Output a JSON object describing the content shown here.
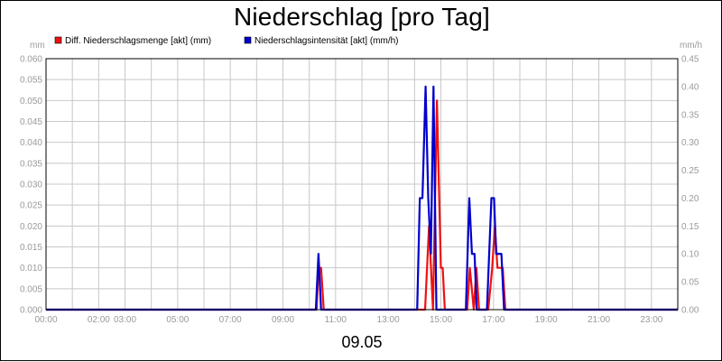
{
  "chart_data": {
    "type": "line",
    "title": "Niederschlag [pro Tag]",
    "date_label": "09.05",
    "y_left_unit": "mm",
    "y_right_unit": "mm/h",
    "y_left_range": [
      0,
      0.06
    ],
    "y_right_range": [
      0,
      0.45
    ],
    "x_range_hours": [
      0,
      24
    ],
    "grid": true,
    "legend_placement": "top-left",
    "left_ticks": [
      "0.000",
      "0.005",
      "0.010",
      "0.015",
      "0.020",
      "0.025",
      "0.030",
      "0.035",
      "0.040",
      "0.045",
      "0.050",
      "0.055",
      "0.060"
    ],
    "right_ticks": [
      "0.00",
      "0.05",
      "0.10",
      "0.15",
      "0.20",
      "0.25",
      "0.30",
      "0.35",
      "0.40",
      "0.45"
    ],
    "x_ticks": [
      {
        "h": 0,
        "label": "00:00"
      },
      {
        "h": 2,
        "label": "02:00"
      },
      {
        "h": 3,
        "label": "03:00"
      },
      {
        "h": 5,
        "label": "05:00"
      },
      {
        "h": 7,
        "label": "07:00"
      },
      {
        "h": 9,
        "label": "09:00"
      },
      {
        "h": 11,
        "label": "11:00"
      },
      {
        "h": 13,
        "label": "13:00"
      },
      {
        "h": 15,
        "label": "15:00"
      },
      {
        "h": 17,
        "label": "17:00"
      },
      {
        "h": 19,
        "label": "19:00"
      },
      {
        "h": 21,
        "label": "21:00"
      },
      {
        "h": 23,
        "label": "23:00"
      }
    ],
    "series": [
      {
        "name": "Diff. Niederschlagsmenge [akt] (mm)",
        "color": "#ee1111",
        "axis": "left",
        "points": [
          [
            0,
            0
          ],
          [
            10.28,
            0
          ],
          [
            10.35,
            0.01
          ],
          [
            10.45,
            0.01
          ],
          [
            10.55,
            0
          ],
          [
            14.4,
            0
          ],
          [
            14.55,
            0.02
          ],
          [
            14.7,
            0
          ],
          [
            14.85,
            0.05
          ],
          [
            15.0,
            0.01
          ],
          [
            15.07,
            0.01
          ],
          [
            15.15,
            0
          ],
          [
            16.0,
            0
          ],
          [
            16.1,
            0.01
          ],
          [
            16.25,
            0
          ],
          [
            16.35,
            0.01
          ],
          [
            16.45,
            0
          ],
          [
            16.8,
            0
          ],
          [
            16.95,
            0.01
          ],
          [
            17.05,
            0.02
          ],
          [
            17.15,
            0.01
          ],
          [
            17.35,
            0.01
          ],
          [
            17.45,
            0
          ],
          [
            24,
            0
          ]
        ]
      },
      {
        "name": "Niederschlagsintensität [akt] (mm/h)",
        "color": "#0000cc",
        "axis": "right",
        "points": [
          [
            0,
            0
          ],
          [
            10.25,
            0
          ],
          [
            10.35,
            0.1
          ],
          [
            10.45,
            0
          ],
          [
            14.1,
            0
          ],
          [
            14.2,
            0.2
          ],
          [
            14.3,
            0.2
          ],
          [
            14.42,
            0.4
          ],
          [
            14.52,
            0.2
          ],
          [
            14.62,
            0.1
          ],
          [
            14.72,
            0.4
          ],
          [
            14.83,
            0
          ],
          [
            15.95,
            0
          ],
          [
            16.08,
            0.2
          ],
          [
            16.18,
            0.1
          ],
          [
            16.28,
            0.1
          ],
          [
            16.36,
            0
          ],
          [
            16.75,
            0
          ],
          [
            16.92,
            0.2
          ],
          [
            17.02,
            0.2
          ],
          [
            17.1,
            0.1
          ],
          [
            17.3,
            0.1
          ],
          [
            17.4,
            0
          ],
          [
            24,
            0
          ]
        ]
      }
    ]
  }
}
